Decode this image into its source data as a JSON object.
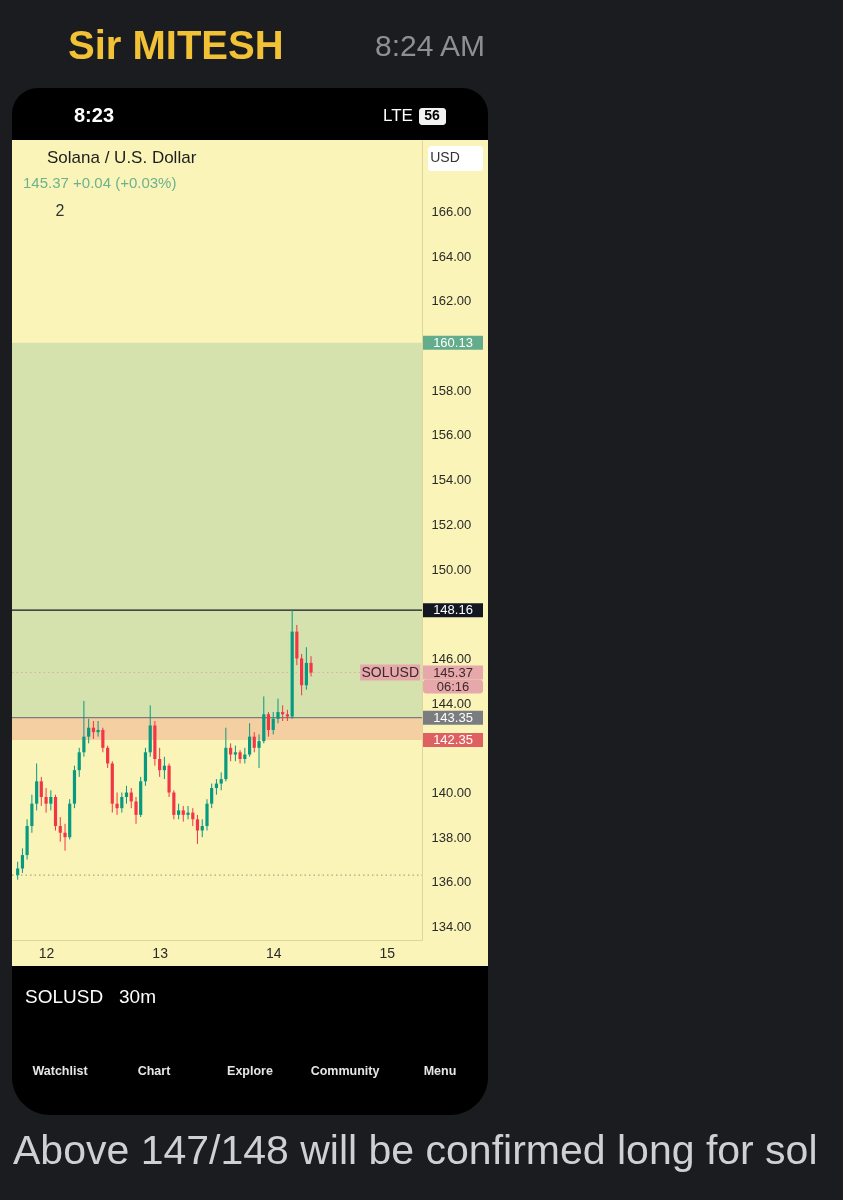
{
  "chart_data": {
    "type": "candlestick",
    "title": "Solana / U.S. Dollar",
    "subtitle": "145.37 +0.04 (+0.03%)",
    "x": [
      11.75,
      11.792,
      11.833,
      11.875,
      11.917,
      11.958,
      12.0,
      12.042,
      12.083,
      12.125,
      12.167,
      12.208,
      12.25,
      12.292,
      12.333,
      12.375,
      12.417,
      12.458,
      12.5,
      12.542,
      12.583,
      12.625,
      12.667,
      12.708,
      12.75,
      12.792,
      12.833,
      12.875,
      12.917,
      12.958,
      13.0,
      13.042,
      13.083,
      13.125,
      13.167,
      13.208,
      13.25,
      13.292,
      13.333,
      13.375,
      13.417,
      13.458,
      13.5,
      13.542,
      13.583,
      13.625,
      13.667,
      13.708,
      13.75,
      13.792,
      13.833,
      13.875,
      13.917,
      13.958,
      14.0,
      14.042,
      14.083,
      14.125,
      14.167,
      14.208,
      14.25,
      14.292,
      14.333
    ],
    "ohlc": [
      [
        136.3,
        136.9,
        136.1,
        136.6
      ],
      [
        136.6,
        137.5,
        136.4,
        137.2
      ],
      [
        137.2,
        138.8,
        137.0,
        138.5
      ],
      [
        138.5,
        139.9,
        138.2,
        139.5
      ],
      [
        139.5,
        141.3,
        139.2,
        140.5
      ],
      [
        140.5,
        140.7,
        139.4,
        139.8
      ],
      [
        139.8,
        140.2,
        139.1,
        139.5
      ],
      [
        139.5,
        140.1,
        139.2,
        139.8
      ],
      [
        139.8,
        139.9,
        138.3,
        138.5
      ],
      [
        138.5,
        138.9,
        137.8,
        138.2
      ],
      [
        138.2,
        138.6,
        137.4,
        138.0
      ],
      [
        138.0,
        139.7,
        137.9,
        139.5
      ],
      [
        139.5,
        141.2,
        139.3,
        141.0
      ],
      [
        141.0,
        142.0,
        140.7,
        141.8
      ],
      [
        141.8,
        144.1,
        141.6,
        142.5
      ],
      [
        142.5,
        143.3,
        142.2,
        142.9
      ],
      [
        142.9,
        143.2,
        142.4,
        142.7
      ],
      [
        142.7,
        143.2,
        142.5,
        142.8
      ],
      [
        142.8,
        142.9,
        141.8,
        142.0
      ],
      [
        142.0,
        142.1,
        141.1,
        141.3
      ],
      [
        141.3,
        141.4,
        139.1,
        139.5
      ],
      [
        139.5,
        140.0,
        139.0,
        139.3
      ],
      [
        139.3,
        140.0,
        139.1,
        139.8
      ],
      [
        139.8,
        140.3,
        139.5,
        140.0
      ],
      [
        140.0,
        140.2,
        139.3,
        139.6
      ],
      [
        139.6,
        139.8,
        138.6,
        139.0
      ],
      [
        139.0,
        140.7,
        138.9,
        140.5
      ],
      [
        140.5,
        142.0,
        140.3,
        141.8
      ],
      [
        141.8,
        143.9,
        141.6,
        143.0
      ],
      [
        143.0,
        143.2,
        141.2,
        141.5
      ],
      [
        141.5,
        142.0,
        140.7,
        141.0
      ],
      [
        141.0,
        141.6,
        140.6,
        141.2
      ],
      [
        141.2,
        141.3,
        139.8,
        140.0
      ],
      [
        140.0,
        140.1,
        138.8,
        139.0
      ],
      [
        139.0,
        139.5,
        138.8,
        139.2
      ],
      [
        139.2,
        139.4,
        138.7,
        139.0
      ],
      [
        139.0,
        139.4,
        138.8,
        139.1
      ],
      [
        139.1,
        139.3,
        138.5,
        138.8
      ],
      [
        138.8,
        139.0,
        137.7,
        138.3
      ],
      [
        138.3,
        138.8,
        138.0,
        138.5
      ],
      [
        138.5,
        139.7,
        138.3,
        139.5
      ],
      [
        139.5,
        140.4,
        139.3,
        140.2
      ],
      [
        140.2,
        140.6,
        139.9,
        140.4
      ],
      [
        140.4,
        140.9,
        140.1,
        140.6
      ],
      [
        140.6,
        142.9,
        140.5,
        142.0
      ],
      [
        142.0,
        142.2,
        141.4,
        141.7
      ],
      [
        141.7,
        142.1,
        141.4,
        141.8
      ],
      [
        141.8,
        141.9,
        141.3,
        141.5
      ],
      [
        141.5,
        142.0,
        141.3,
        141.7
      ],
      [
        141.7,
        143.1,
        141.6,
        142.5
      ],
      [
        142.5,
        142.7,
        141.8,
        142.0
      ],
      [
        142.0,
        142.6,
        141.1,
        142.3
      ],
      [
        142.3,
        144.3,
        142.2,
        143.5
      ],
      [
        143.5,
        143.6,
        142.5,
        142.8
      ],
      [
        142.8,
        143.6,
        142.6,
        143.3
      ],
      [
        143.3,
        144.2,
        143.1,
        143.6
      ],
      [
        143.6,
        143.9,
        143.2,
        143.5
      ],
      [
        143.5,
        143.7,
        143.2,
        143.4
      ],
      [
        143.4,
        148.16,
        143.3,
        147.2
      ],
      [
        147.2,
        147.5,
        145.7,
        146.0
      ],
      [
        146.0,
        146.2,
        144.35,
        144.8
      ],
      [
        144.8,
        146.5,
        144.6,
        145.8
      ],
      [
        145.8,
        146.1,
        145.2,
        145.37
      ]
    ],
    "colors": [
      "#089981",
      "#089981",
      "#089981",
      "#089981",
      "#089981",
      "#f23645",
      "#f23645",
      "#089981",
      "#f23645",
      "#f23645",
      "#f23645",
      "#089981",
      "#089981",
      "#089981",
      "#089981",
      "#089981",
      "#f23645",
      "#089981",
      "#f23645",
      "#f23645",
      "#f23645",
      "#f23645",
      "#089981",
      "#089981",
      "#f23645",
      "#f23645",
      "#089981",
      "#089981",
      "#089981",
      "#f23645",
      "#f23645",
      "#089981",
      "#f23645",
      "#f23645",
      "#089981",
      "#f23645",
      "#089981",
      "#f23645",
      "#f23645",
      "#089981",
      "#089981",
      "#089981",
      "#089981",
      "#089981",
      "#089981",
      "#f23645",
      "#089981",
      "#f23645",
      "#089981",
      "#089981",
      "#f23645",
      "#089981",
      "#089981",
      "#f23645",
      "#089981",
      "#089981",
      "#f23645",
      "#f23645",
      "#089981",
      "#f23645",
      "#f23645",
      "#089981",
      "#f23645"
    ],
    "xlim": [
      11.7,
      15.31
    ],
    "xticks": [
      12,
      13,
      14,
      15
    ],
    "ylim": [
      133.4,
      169.2
    ],
    "yticks": [
      {
        "value": 134,
        "label": "134.00"
      },
      {
        "value": 136,
        "label": "136.00"
      },
      {
        "value": 138,
        "label": "138.00"
      },
      {
        "value": 140,
        "label": "140.00"
      },
      {
        "value": 144,
        "label": "144.00"
      },
      {
        "value": 146,
        "label": "146.00"
      },
      {
        "value": 150,
        "label": "150.00"
      },
      {
        "value": 152,
        "label": "152.00"
      },
      {
        "value": 154,
        "label": "154.00"
      },
      {
        "value": 156,
        "label": "156.00"
      },
      {
        "value": 158,
        "label": "158.00"
      },
      {
        "value": 162,
        "label": "162.00"
      },
      {
        "value": 164,
        "label": "164.00"
      },
      {
        "value": 166,
        "label": "166.00"
      }
    ],
    "bands": [
      {
        "axis": "y",
        "from": 143.35,
        "to": 160.13,
        "label": "160.13",
        "color": "#d5e2ad"
      },
      {
        "axis": "y",
        "from": 143.35,
        "to": 142.35,
        "label": "142.35",
        "color": "#f4cfa2"
      }
    ],
    "ref_lines": [
      {
        "axis": "y",
        "value": 148.16,
        "label": "148.16",
        "color": "#131722"
      },
      {
        "axis": "y",
        "value": 145.37,
        "label": "145.37",
        "color": "#e7a8ab",
        "line_style": "dotted"
      },
      {
        "axis": "y",
        "value": 143.35,
        "label": "143.35",
        "color": "#7b7c80"
      },
      {
        "axis": "y",
        "value": 136.3,
        "color": "#a8a48a",
        "line_style": "dotted"
      }
    ],
    "annotations": [
      "Sir MITESH",
      "8:24 AM",
      "8:23",
      "LTE",
      "56",
      "2",
      "USD",
      {
        "text": "SOLUSD",
        "x": 15.03,
        "y": 145.37
      },
      "06:16",
      "SOLUSD",
      "30m",
      "Watchlist",
      "Chart",
      "Explore",
      "Community",
      "Menu",
      "Above 147/148 will be confirmed long for sol"
    ]
  }
}
